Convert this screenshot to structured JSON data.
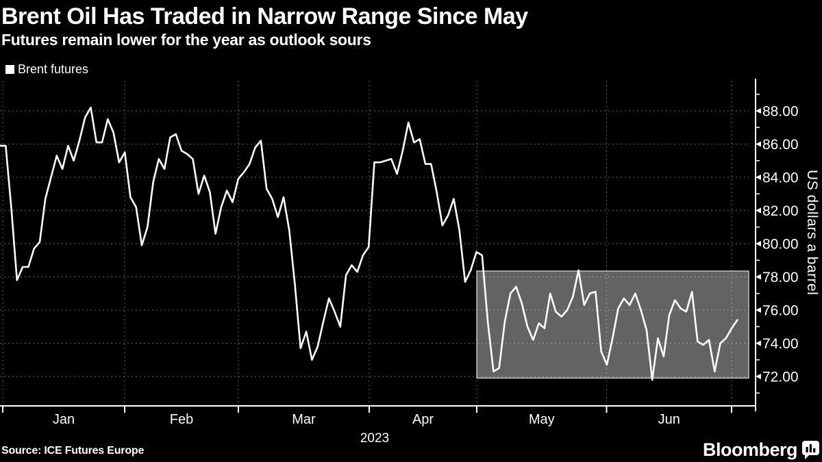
{
  "header": {
    "title": "Brent Oil Has Traded in Narrow Range Since May",
    "subtitle": "Futures remain lower for the year as outlook sours"
  },
  "legend": {
    "swatch_color": "#ffffff",
    "label": "Brent futures"
  },
  "footer": {
    "source": "Source: ICE Futures Europe",
    "logo": "Bloomberg"
  },
  "chart_data": {
    "type": "line",
    "title": "Brent Oil Has Traded in Narrow Range Since May",
    "subtitle": "Futures remain lower for the year as outlook sours",
    "ylabel": "US dollars a barrel",
    "year_label": "2023",
    "legend_entries": [
      "Brent futures"
    ],
    "legend_position": "top-left",
    "grid": "dotted",
    "y_ticks": [
      88,
      86,
      84,
      82,
      80,
      78,
      76,
      74,
      72
    ],
    "y_tick_format": "2dp",
    "y_minor_tick_step": 1,
    "ylim": [
      70.3,
      89.8
    ],
    "x_month_labels": [
      "Jan",
      "Feb",
      "Mar",
      "Apr",
      "May",
      "Jun"
    ],
    "colors": {
      "background": "#000000",
      "line": "#ffffff",
      "grid": "rgba(255,255,255,0.32)",
      "box_fill": "#636363",
      "box_border": "#d9d9d9",
      "text": "#ffffff"
    },
    "highlight_box": {
      "value_high": 78.35,
      "value_low": 71.9
    },
    "series": [
      {
        "name": "Brent futures",
        "color": "#ffffff",
        "pre_january_values": [
          85.9,
          85.9
        ],
        "months": [
          {
            "month": "Jan",
            "values": [
              82.1,
              77.8,
              78.6,
              78.6,
              79.7,
              80.1,
              82.7,
              84.0,
              85.3,
              84.5,
              85.9,
              85.0,
              86.2,
              87.6,
              88.2,
              86.1,
              86.1,
              87.5,
              86.7,
              84.9,
              85.5
            ]
          },
          {
            "month": "Feb",
            "values": [
              82.8,
              82.2,
              79.9,
              81.0,
              83.7,
              85.1,
              84.5,
              86.4,
              86.6,
              85.6,
              85.4,
              85.1,
              83.0,
              84.1,
              83.1,
              80.6,
              82.2,
              83.2,
              82.5,
              83.9
            ]
          },
          {
            "month": "Mar",
            "values": [
              84.3,
              84.8,
              85.8,
              86.2,
              83.3,
              82.7,
              81.6,
              82.8,
              80.8,
              77.5,
              73.7,
              74.7,
              73.0,
              73.8,
              75.3,
              76.7,
              75.9,
              75.0,
              78.1,
              78.7,
              78.3,
              79.3,
              79.8
            ]
          },
          {
            "month": "Apr",
            "values": [
              84.9,
              84.9,
              85.0,
              85.1,
              84.2,
              85.6,
              87.3,
              86.1,
              86.3,
              84.8,
              84.8,
              83.1,
              81.1,
              81.7,
              82.7,
              80.8,
              77.7,
              78.4,
              79.5
            ]
          },
          {
            "month": "May",
            "values": [
              79.3,
              75.3,
              72.3,
              72.5,
              75.3,
              77.0,
              77.4,
              76.4,
              75.0,
              74.2,
              75.2,
              74.9,
              77.0,
              75.9,
              75.6,
              76.0,
              76.8,
              78.4,
              76.3,
              77.0,
              77.1,
              73.5,
              72.7
            ]
          },
          {
            "month": "Jun",
            "values": [
              74.3,
              76.1,
              76.7,
              76.3,
              77.0,
              76.0,
              74.8,
              71.8,
              74.3,
              73.2,
              75.7,
              76.6,
              76.1,
              75.9,
              77.1,
              74.1,
              73.9,
              74.2,
              72.3,
              74.0,
              74.3,
              74.9
            ]
          },
          {
            "month": "",
            "values": [
              75.4
            ]
          }
        ]
      }
    ]
  }
}
